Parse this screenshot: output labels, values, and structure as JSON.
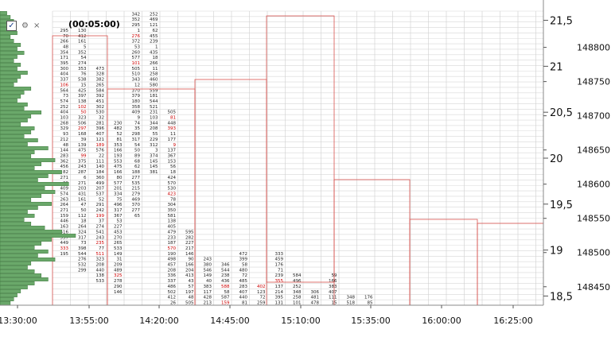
{
  "timeframe": "(00:05:00)",
  "checkbox_mark": "✓",
  "gear_glyph": "⚙",
  "close_glyph": "×",
  "colors": {
    "bar": "#6aa86a",
    "bar_edge": "#2f6b2f",
    "value_area": "#d9534f",
    "poc": "#cc0000",
    "grid": "#bdbdbd"
  },
  "chart_data": {
    "type": "footprint",
    "time_labels": [
      "13:30:00",
      "13:55:00",
      "14:20:00",
      "14:45:00",
      "15:10:00",
      "15:35:00",
      "16:00:00",
      "16:25:00"
    ],
    "price_labels": [
      "148800",
      "148750",
      "148700",
      "148650",
      "148600",
      "148550",
      "148500",
      "148450"
    ],
    "price_ticks": [
      148800,
      148750,
      148700,
      148650,
      148600,
      148550,
      148500,
      148450
    ],
    "sec_axis_labels": [
      "21,5",
      "21",
      "20,5",
      "20",
      "19,5",
      "19",
      "18,5"
    ],
    "sec_axis_ticks": [
      21.5,
      21,
      20.5,
      20,
      19.5,
      19,
      18.5
    ],
    "ylim": [
      148423,
      148853
    ],
    "profile_values": [
      2,
      3,
      4,
      3,
      4,
      5,
      3,
      4,
      6,
      5,
      7,
      5,
      4,
      6,
      5,
      8,
      6,
      5,
      4,
      9,
      7,
      6,
      5,
      8,
      7,
      12,
      9,
      8,
      6,
      10,
      9,
      7,
      11,
      8,
      14,
      10,
      9,
      16,
      12,
      10,
      18,
      14,
      11,
      20,
      13,
      16,
      12,
      9,
      15,
      11,
      8,
      10,
      7,
      9,
      13,
      18,
      22,
      15,
      12,
      10,
      14,
      11,
      16,
      9,
      8,
      10,
      12,
      14,
      10,
      8,
      6,
      5,
      4,
      3
    ]
  }
}
